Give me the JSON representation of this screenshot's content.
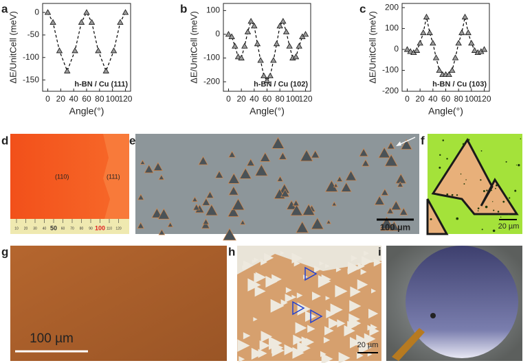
{
  "chart_data": [
    {
      "type": "line",
      "ylabel": "ΔE/UnitCell (meV)",
      "xlabel": "Angle(°)",
      "annotation": "h-BN / Cu (111)",
      "x": [
        0,
        8,
        18,
        30,
        42,
        52,
        60,
        68,
        78,
        90,
        102,
        112,
        120
      ],
      "values": [
        0,
        -22,
        -85,
        -130,
        -85,
        -22,
        0,
        -22,
        -85,
        -130,
        -85,
        -22,
        0
      ],
      "xlim": [
        -8,
        128
      ],
      "xticks": [
        0,
        20,
        40,
        60,
        80,
        100,
        120
      ],
      "ylim": [
        -175,
        20
      ],
      "yticks": [
        0,
        -50,
        -100,
        -150
      ],
      "color": "#000000"
    },
    {
      "type": "line",
      "ylabel": "ΔE/UnitCell (meV)",
      "xlabel": "Angle(°)",
      "annotation": "h-BN / Cu (102)",
      "x": [
        0,
        5,
        10,
        15,
        20,
        25,
        30,
        35,
        40,
        45,
        50,
        55,
        60,
        65,
        70,
        75,
        80,
        85,
        90,
        95,
        100,
        105,
        110,
        115,
        120
      ],
      "values": [
        0,
        -10,
        -50,
        -95,
        -100,
        -50,
        10,
        55,
        35,
        -40,
        -110,
        -175,
        -195,
        -175,
        -110,
        -40,
        35,
        55,
        10,
        -50,
        -100,
        -95,
        -50,
        -10,
        0
      ],
      "xlim": [
        -8,
        128
      ],
      "xticks": [
        0,
        20,
        40,
        60,
        80,
        100,
        120
      ],
      "ylim": [
        -240,
        130
      ],
      "yticks": [
        100,
        0,
        -100,
        -200
      ],
      "color": "#000000"
    },
    {
      "type": "line",
      "ylabel": "ΔE/UnitCell (meV)",
      "xlabel": "Angle(°)",
      "annotation": "h-BN / Cu (103)",
      "x": [
        0,
        5,
        10,
        15,
        20,
        25,
        30,
        35,
        40,
        45,
        50,
        55,
        60,
        65,
        70,
        75,
        80,
        85,
        90,
        95,
        100,
        105,
        110,
        115,
        120
      ],
      "values": [
        0,
        -10,
        -15,
        -5,
        30,
        80,
        155,
        80,
        30,
        -40,
        -100,
        -120,
        -120,
        -120,
        -100,
        -40,
        30,
        80,
        155,
        80,
        30,
        -5,
        -15,
        -10,
        0
      ],
      "xlim": [
        -8,
        128
      ],
      "xticks": [
        0,
        20,
        40,
        60,
        80,
        100,
        120
      ],
      "ylim": [
        -200,
        220
      ],
      "yticks": [
        200,
        100,
        0,
        -100,
        -200
      ],
      "color": "#000000"
    }
  ],
  "panel_labels": [
    "a",
    "b",
    "c",
    "d",
    "e",
    "f",
    "g",
    "h",
    "i"
  ],
  "d": {
    "labels": [
      "(110)",
      "(111)"
    ],
    "ruler": [
      "10",
      "20",
      "30",
      "40",
      "50",
      "60",
      "70",
      "80",
      "90",
      "100",
      "110",
      "120"
    ]
  },
  "e": {
    "scale": "100 µm"
  },
  "f": {
    "scale": "20 µm"
  },
  "g": {
    "scale": "100 µm"
  },
  "h": {
    "scale": "20 µm"
  }
}
